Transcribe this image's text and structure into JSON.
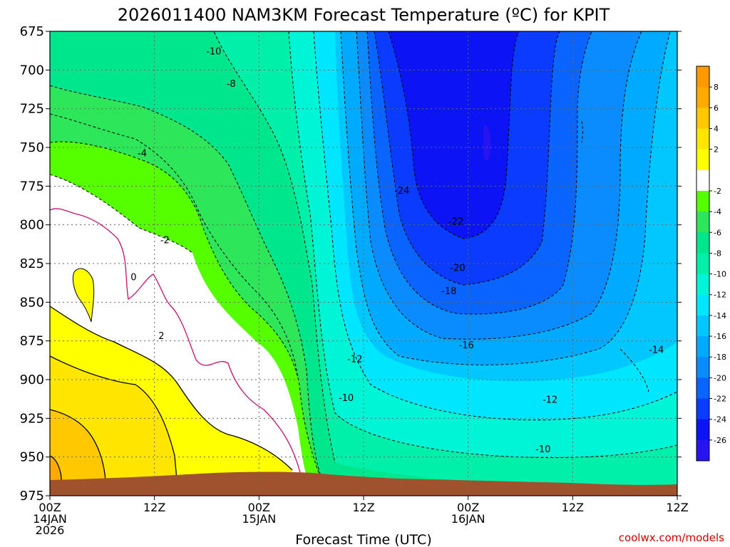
{
  "chart_data": {
    "type": "heatmap",
    "title": "2026011400 NAM3KM Forecast Temperature (ºC) for KPIT",
    "xlabel": "Forecast Time (UTC)",
    "ylabel": "",
    "x_range_hours": [
      0,
      36
    ],
    "y_levels_hpa": [
      675,
      700,
      725,
      750,
      775,
      800,
      825,
      850,
      875,
      900,
      925,
      950,
      975
    ],
    "ylim": [
      975,
      675
    ],
    "x_ticks": [
      {
        "hour": 0,
        "lines": [
          "00Z",
          "14JAN",
          "2026"
        ]
      },
      {
        "hour": 6,
        "lines": [
          "12Z"
        ]
      },
      {
        "hour": 12,
        "lines": [
          "00Z",
          "15JAN"
        ]
      },
      {
        "hour": 18,
        "lines": [
          "12Z"
        ]
      },
      {
        "hour": 24,
        "lines": [
          "00Z",
          "16JAN"
        ]
      },
      {
        "hour": 30,
        "lines": [
          "12Z"
        ]
      }
    ],
    "x_end_label": "12Z",
    "grid": true,
    "colorbar": {
      "labels": [
        "8",
        "6",
        "4",
        "2",
        "-2",
        "-4",
        "-6",
        "-8",
        "-10",
        "-12",
        "-14",
        "-16",
        "-18",
        "-20",
        "-22",
        "-24",
        "-26"
      ],
      "bands": [
        {
          "label": "> 8",
          "color": "#ff9900"
        },
        {
          "label": "6 to 8",
          "color": "#ffaa00"
        },
        {
          "label": "4 to 6",
          "color": "#ffc800"
        },
        {
          "label": "2 to 4",
          "color": "#ffe600"
        },
        {
          "label": "0 to 2",
          "color": "#ffff00"
        },
        {
          "label": "-2 to 0",
          "color": "#ffffff"
        },
        {
          "label": "-4 to -2",
          "color": "#55ff00"
        },
        {
          "label": "-6 to -4",
          "color": "#2ee65a"
        },
        {
          "label": "-8 to -6",
          "color": "#00e68c"
        },
        {
          "label": "-10 to -8",
          "color": "#00f0aa"
        },
        {
          "label": "-12 to -10",
          "color": "#00f5d7"
        },
        {
          "label": "-14 to -12",
          "color": "#00e6ff"
        },
        {
          "label": "-16 to -14",
          "color": "#00c8ff"
        },
        {
          "label": "-18 to -16",
          "color": "#00aaff"
        },
        {
          "label": "-20 to -18",
          "color": "#0a8cff"
        },
        {
          "label": "-22 to -20",
          "color": "#0a64ff"
        },
        {
          "label": "-24 to -22",
          "color": "#0a3cff"
        },
        {
          "label": "-26 to -24",
          "color": "#0a14f5"
        },
        {
          "label": "< -26",
          "color": "#2814f0"
        }
      ]
    },
    "contour_labels": [
      {
        "text": "-10",
        "hour": 9.4,
        "hpa": 688
      },
      {
        "text": "-8",
        "hour": 10.4,
        "hpa": 709
      },
      {
        "text": "-4",
        "hour": 5.3,
        "hpa": 754
      },
      {
        "text": "-2",
        "hour": 6.6,
        "hpa": 810
      },
      {
        "text": "0",
        "hour": 4.8,
        "hpa": 834
      },
      {
        "text": "2",
        "hour": 6.4,
        "hpa": 872
      },
      {
        "text": "-24",
        "hour": 20.2,
        "hpa": 778
      },
      {
        "text": "-22",
        "hour": 23.3,
        "hpa": 798
      },
      {
        "text": "-20",
        "hour": 23.4,
        "hpa": 828
      },
      {
        "text": "-18",
        "hour": 22.9,
        "hpa": 843
      },
      {
        "text": "-16",
        "hour": 23.9,
        "hpa": 878
      },
      {
        "text": "-14",
        "hour": 34.8,
        "hpa": 881
      },
      {
        "text": "-12",
        "hour": 17.5,
        "hpa": 887
      },
      {
        "text": "-12",
        "hour": 28.7,
        "hpa": 913
      },
      {
        "text": "-10",
        "hour": 17.0,
        "hpa": 912
      },
      {
        "text": "-10",
        "hour": 28.3,
        "hpa": 945
      }
    ],
    "terrain_color": "#a0522d",
    "freezing_line_color": "#c8106e"
  },
  "credit": "coolwx.com/models"
}
